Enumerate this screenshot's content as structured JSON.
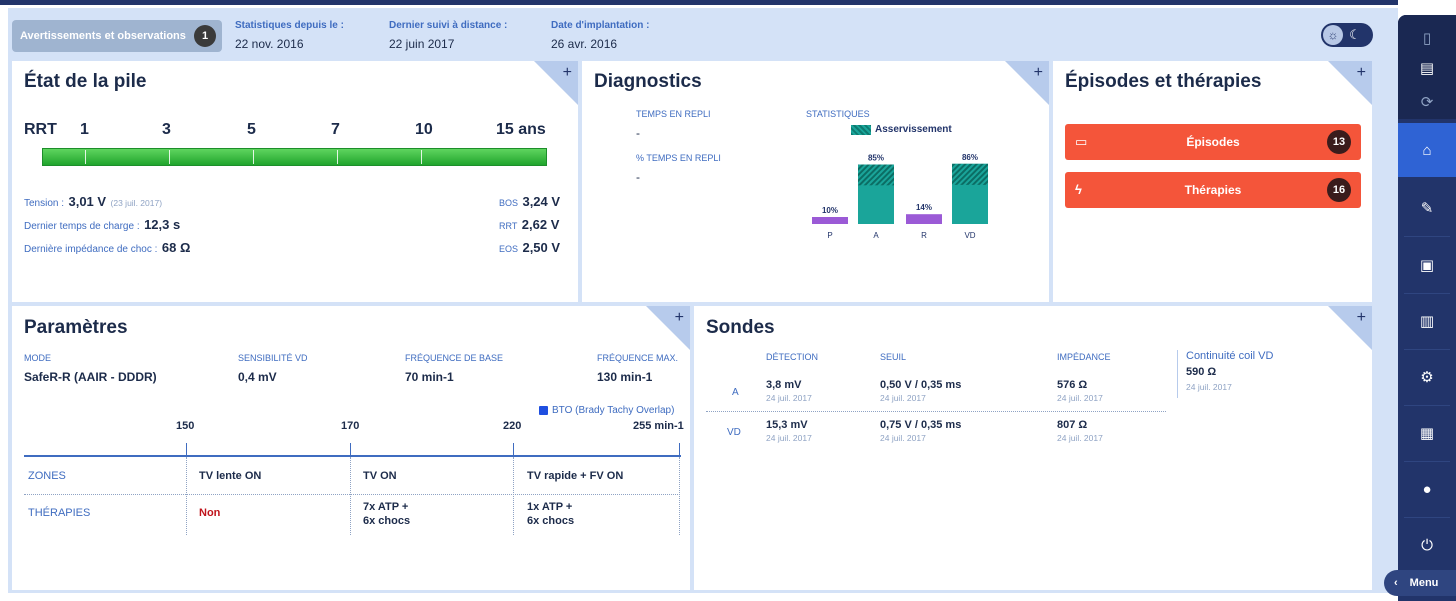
{
  "header": {
    "warnings_label": "Avertissements et observations",
    "warnings_count": "1",
    "stats_since_label": "Statistiques depuis le :",
    "stats_since_value": "22 nov. 2016",
    "remote_label": "Dernier suivi à distance :",
    "remote_value": "22 juin 2017",
    "implant_label": "Date d'implantation :",
    "implant_value": "26 avr. 2016"
  },
  "battery": {
    "title": "État de la pile",
    "scale": [
      "RRT",
      "1",
      "3",
      "5",
      "7",
      "10",
      "15 ans"
    ],
    "voltage_label": "Tension :",
    "voltage_value": "3,01 V",
    "voltage_date": "(23 juil. 2017)",
    "charge_label": "Dernier temps de charge :",
    "charge_value": "12,3 s",
    "impedance_label": "Dernière impédance de choc :",
    "impedance_value": "68 Ω",
    "bos_label": "BOS",
    "bos_value": "3,24 V",
    "rrt_label": "RRT",
    "rrt_value": "2,62 V",
    "eos_label": "EOS",
    "eos_value": "2,50 V"
  },
  "diagnostics": {
    "title": "Diagnostics",
    "fallback_time_label": "TEMPS EN REPLI",
    "fallback_time_value": "-",
    "fallback_pct_label": "% TEMPS EN REPLI",
    "fallback_pct_value": "-",
    "stats_label": "STATISTIQUES",
    "legend_label": "Asservissement"
  },
  "chart_data": {
    "type": "bar",
    "categories": [
      "P",
      "A",
      "R",
      "VD"
    ],
    "values": [
      10,
      85,
      14,
      86
    ],
    "data_labels": [
      "10%",
      "85%",
      "14%",
      "86%"
    ],
    "series_names": [
      "Asservissement"
    ],
    "colors": {
      "P": "#9b5ad6",
      "A": "#1aa59a",
      "R": "#9b5ad6",
      "VD": "#1aa59a"
    },
    "hatched_top_fraction": 0.35,
    "ylim": [
      0,
      100
    ],
    "legend": "top-right",
    "grid": false
  },
  "episodes": {
    "title": "Épisodes et thérapies",
    "episodes_label": "Épisodes",
    "episodes_count": "13",
    "therapies_label": "Thérapies",
    "therapies_count": "16"
  },
  "params": {
    "title": "Paramètres",
    "mode_label": "MODE",
    "mode_value": "SafeR-R (AAIR - DDDR)",
    "sens_label": "SENSIBILITÉ VD",
    "sens_value": "0,4 mV",
    "base_label": "FRÉQUENCE DE BASE",
    "base_value": "70 min-1",
    "max_label": "FRÉQUENCE MAX.",
    "max_value": "130 min-1",
    "bto_label": "BTO (Brady Tachy Overlap)",
    "scale": [
      "150",
      "170",
      "220",
      "255 min-1"
    ],
    "zones_label": "ZONES",
    "zones": [
      "TV lente ON",
      "TV ON",
      "TV rapide + FV ON"
    ],
    "therapies_label": "THÉRAPIES",
    "therapies": [
      "Non",
      "7x ATP +\n6x chocs",
      "1x ATP +\n6x chocs"
    ]
  },
  "leads": {
    "title": "Sondes",
    "col_detection": "DÉTECTION",
    "col_threshold": "SEUIL",
    "col_impedance": "IMPÉDANCE",
    "coil_label": "Continuité coil VD",
    "coil_value": "590 Ω",
    "coil_date": "24 juil. 2017",
    "rows": [
      {
        "chamber": "A",
        "detection": "3,8 mV",
        "detection_date": "24 juil. 2017",
        "threshold": "0,50 V / 0,35 ms",
        "threshold_date": "24 juil. 2017",
        "impedance": "576 Ω",
        "impedance_date": "24 juil. 2017"
      },
      {
        "chamber": "VD",
        "detection": "15,3 mV",
        "detection_date": "24 juil. 2017",
        "threshold": "0,75 V / 0,35 ms",
        "threshold_date": "24 juil. 2017",
        "impedance": "807 Ω",
        "impedance_date": "24 juil. 2017"
      }
    ]
  },
  "sidebar": {
    "menu_label": "Menu",
    "icons": [
      "document-icon",
      "print-icon",
      "sync-icon",
      "home-icon",
      "leads-icon",
      "episodes-icon",
      "stats-icon",
      "settings-icon",
      "report-icon",
      "user-icon",
      "power-icon"
    ]
  }
}
